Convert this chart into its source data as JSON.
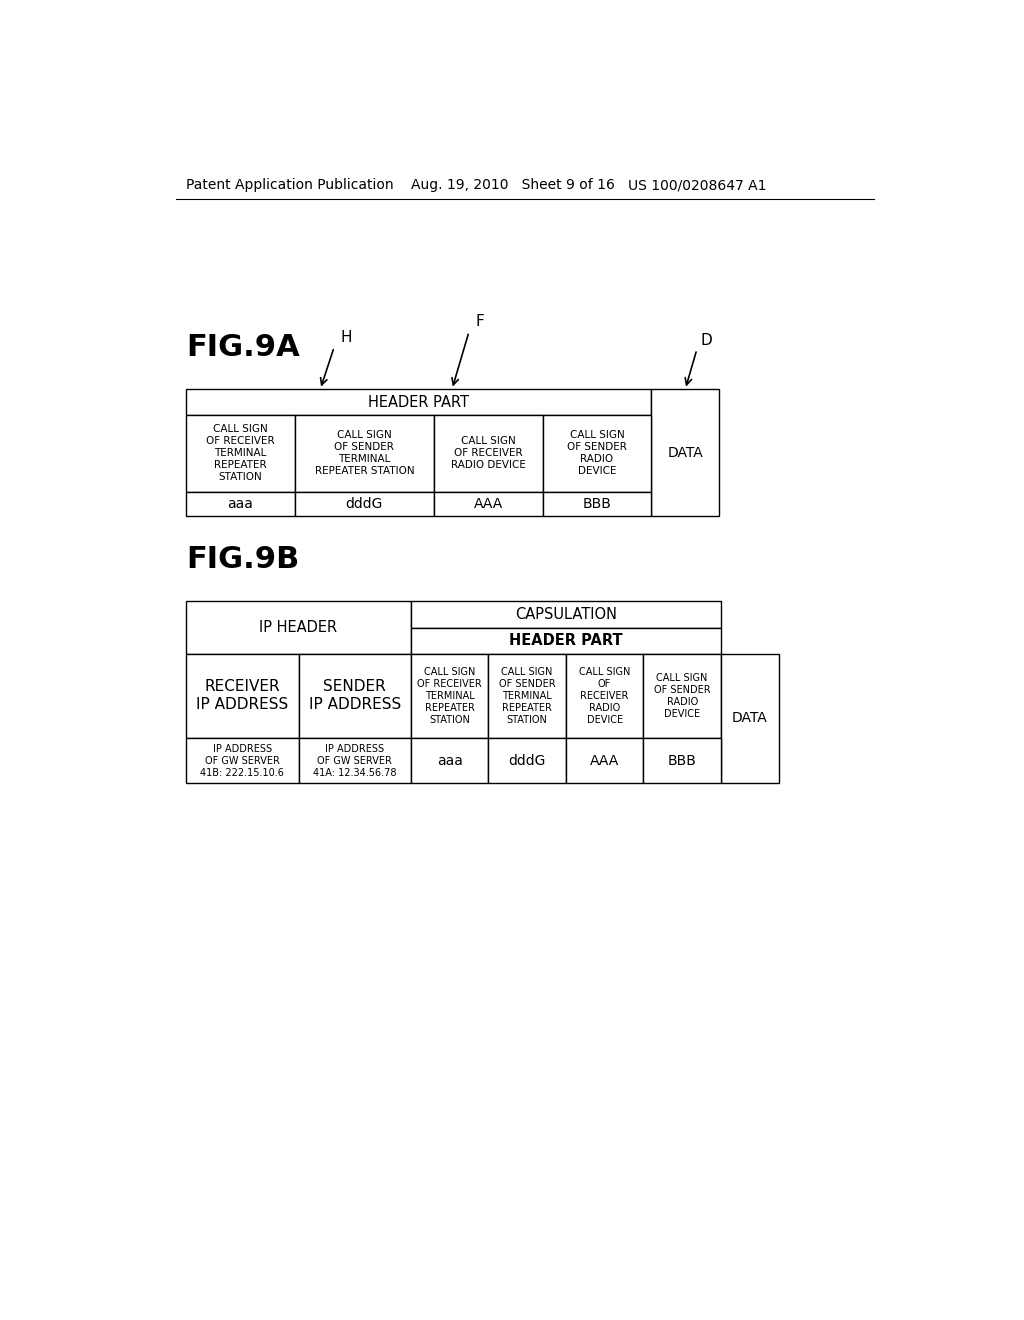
{
  "background_color": "#ffffff",
  "header_left": "Patent Application Publication",
  "header_mid": "Aug. 19, 2010   Sheet 9 of 16",
  "header_right": "US 100/0208647 A1",
  "fig9a_label": "FIG.9A",
  "fig9b_label": "FIG.9B",
  "fig9a": {
    "header_part_label": "HEADER PART",
    "data_label": "DATA",
    "col1_header": "CALL SIGN\nOF RECEIVER\nTERMINAL\nREPEATER\nSTATION",
    "col2_header": "CALL SIGN\nOF SENDER\nTERMINAL\nREPEATER STATION",
    "col3_header": "CALL SIGN\nOF RECEIVER\nRADIO DEVICE",
    "col4_header": "CALL SIGN\nOF SENDER\nRADIO\nDEVICE",
    "col1_val": "aaa",
    "col2_val": "dddG",
    "col3_val": "AAA",
    "col4_val": "BBB"
  },
  "fig9b": {
    "ip_header_label": "IP HEADER",
    "capsulation_label": "CAPSULATION",
    "header_part_label": "HEADER PART",
    "data_label": "DATA",
    "col1_header": "RECEIVER\nIP ADDRESS",
    "col2_header": "SENDER\nIP ADDRESS",
    "col3_header": "CALL SIGN\nOF RECEIVER\nTERMINAL\nREPEATER\nSTATION",
    "col4_header": "CALL SIGN\nOF SENDER\nTERMINAL\nREPEATER\nSTATION",
    "col5_header": "CALL SIGN\nOF\nRECEIVER\nRADIO\nDEVICE",
    "col6_header": "CALL SIGN\nOF SENDER\nRADIO\nDEVICE",
    "col1_val": "IP ADDRESS\nOF GW SERVER\n41B: 222.15.10.6",
    "col2_val": "IP ADDRESS\nOF GW SERVER\n41A: 12.34.56.78",
    "col3_val": "aaa",
    "col4_val": "dddG",
    "col5_val": "AAA",
    "col6_val": "BBB"
  }
}
